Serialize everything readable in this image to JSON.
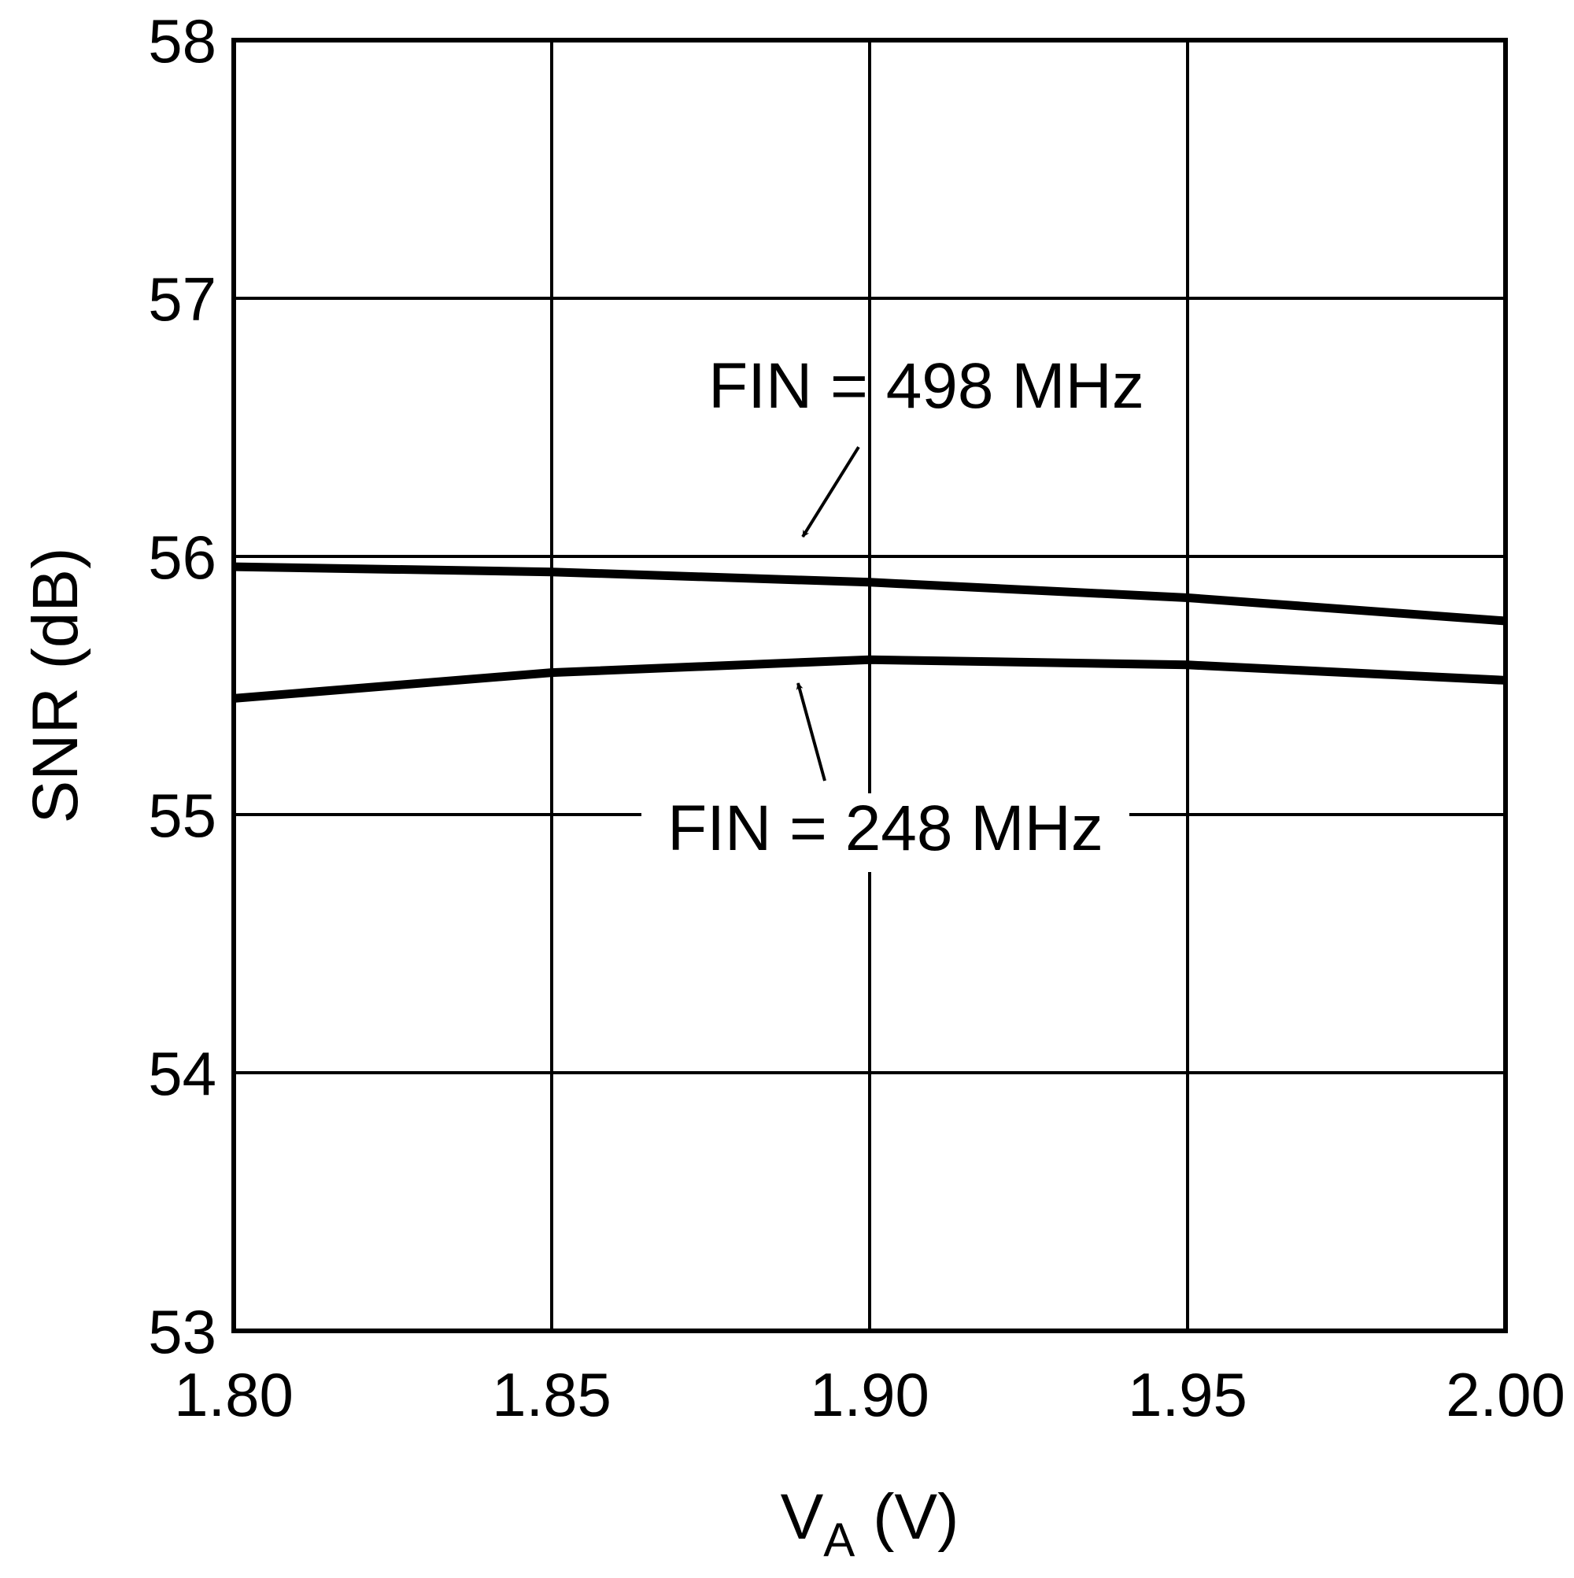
{
  "chart_data": {
    "type": "line",
    "x_label": {
      "text": "V",
      "subscript": "A",
      "suffix": " (V)"
    },
    "y_label": "SNR (dB)",
    "x": [
      1.8,
      1.85,
      1.9,
      1.95,
      2.0
    ],
    "series": [
      {
        "name": "FIN = 498 MHz",
        "color": "#000000",
        "values": [
          55.96,
          55.94,
          55.9,
          55.84,
          55.75
        ]
      },
      {
        "name": "FIN = 248 MHz",
        "color": "#000000",
        "values": [
          55.45,
          55.55,
          55.6,
          55.58,
          55.52
        ]
      }
    ],
    "xlim": [
      1.8,
      2.0
    ],
    "xticks": [
      {
        "value": 1.8,
        "label": "1.80"
      },
      {
        "value": 1.85,
        "label": "1.85"
      },
      {
        "value": 1.9,
        "label": "1.90"
      },
      {
        "value": 1.95,
        "label": "1.95"
      },
      {
        "value": 2.0,
        "label": "2.00"
      }
    ],
    "ylim": [
      53,
      58
    ],
    "yticks": [
      53,
      54,
      55,
      56,
      57,
      58
    ],
    "grid": true
  }
}
